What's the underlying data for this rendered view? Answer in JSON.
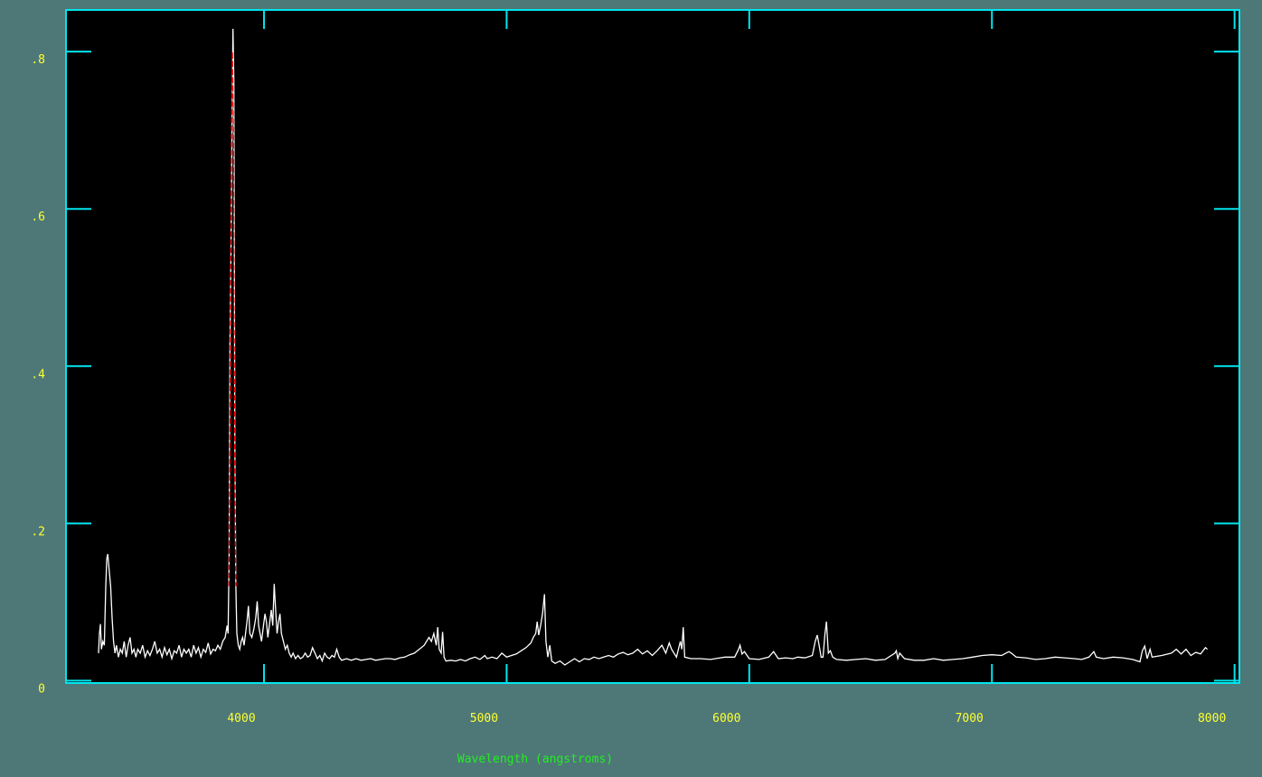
{
  "chart_data": {
    "type": "line",
    "title": "",
    "xlabel": "Wavelength (angstroms)",
    "ylabel": "",
    "xlim": [
      3184,
      8020
    ],
    "ylim": [
      -0.003,
      0.853
    ],
    "grid": false,
    "x_ticks": [
      4000,
      5000,
      6000,
      7000,
      8000
    ],
    "x_tick_labels": [
      "4000",
      "5000",
      "6000",
      "7000",
      "8000"
    ],
    "y_ticks": [
      0,
      0.2,
      0.4,
      0.6,
      0.8
    ],
    "y_tick_labels": [
      "0",
      ".2",
      ".4",
      ".6",
      ".8"
    ],
    "colors": {
      "background": "#4e7877",
      "plot_area": "#000000",
      "frame": "#00e5ee",
      "spectrum": "#ffffff",
      "fit": "#ff0000",
      "tick_labels": "#ffff33",
      "axis_title": "#22ee22"
    },
    "series": [
      {
        "color": "#ffffff",
        "points": [
          [
            3318,
            0.035
          ],
          [
            3322,
            0.06
          ],
          [
            3326,
            0.072
          ],
          [
            3330,
            0.04
          ],
          [
            3336,
            0.05
          ],
          [
            3342,
            0.045
          ],
          [
            3348,
            0.12
          ],
          [
            3352,
            0.155
          ],
          [
            3356,
            0.161
          ],
          [
            3362,
            0.14
          ],
          [
            3368,
            0.12
          ],
          [
            3374,
            0.08
          ],
          [
            3380,
            0.05
          ],
          [
            3386,
            0.035
          ],
          [
            3392,
            0.045
          ],
          [
            3400,
            0.03
          ],
          [
            3408,
            0.04
          ],
          [
            3416,
            0.035
          ],
          [
            3424,
            0.05
          ],
          [
            3432,
            0.03
          ],
          [
            3440,
            0.045
          ],
          [
            3448,
            0.055
          ],
          [
            3456,
            0.035
          ],
          [
            3464,
            0.04
          ],
          [
            3472,
            0.03
          ],
          [
            3480,
            0.04
          ],
          [
            3490,
            0.035
          ],
          [
            3500,
            0.045
          ],
          [
            3510,
            0.03
          ],
          [
            3520,
            0.038
          ],
          [
            3530,
            0.032
          ],
          [
            3540,
            0.04
          ],
          [
            3550,
            0.05
          ],
          [
            3560,
            0.035
          ],
          [
            3570,
            0.04
          ],
          [
            3580,
            0.03
          ],
          [
            3590,
            0.042
          ],
          [
            3600,
            0.033
          ],
          [
            3610,
            0.04
          ],
          [
            3620,
            0.028
          ],
          [
            3630,
            0.038
          ],
          [
            3640,
            0.035
          ],
          [
            3650,
            0.045
          ],
          [
            3660,
            0.03
          ],
          [
            3670,
            0.04
          ],
          [
            3680,
            0.035
          ],
          [
            3690,
            0.04
          ],
          [
            3700,
            0.03
          ],
          [
            3710,
            0.045
          ],
          [
            3720,
            0.035
          ],
          [
            3730,
            0.042
          ],
          [
            3740,
            0.03
          ],
          [
            3750,
            0.04
          ],
          [
            3760,
            0.036
          ],
          [
            3770,
            0.048
          ],
          [
            3780,
            0.034
          ],
          [
            3790,
            0.04
          ],
          [
            3800,
            0.038
          ],
          [
            3810,
            0.045
          ],
          [
            3820,
            0.04
          ],
          [
            3830,
            0.05
          ],
          [
            3840,
            0.055
          ],
          [
            3848,
            0.07
          ],
          [
            3852,
            0.06
          ],
          [
            3856,
            0.15
          ],
          [
            3860,
            0.43
          ],
          [
            3864,
            0.55
          ],
          [
            3868,
            0.7
          ],
          [
            3872,
            0.829
          ],
          [
            3876,
            0.76
          ],
          [
            3880,
            0.3
          ],
          [
            3884,
            0.12
          ],
          [
            3888,
            0.06
          ],
          [
            3894,
            0.045
          ],
          [
            3900,
            0.04
          ],
          [
            3906,
            0.05
          ],
          [
            3912,
            0.055
          ],
          [
            3918,
            0.045
          ],
          [
            3924,
            0.06
          ],
          [
            3930,
            0.075
          ],
          [
            3936,
            0.095
          ],
          [
            3942,
            0.06
          ],
          [
            3950,
            0.055
          ],
          [
            3958,
            0.065
          ],
          [
            3966,
            0.08
          ],
          [
            3972,
            0.101
          ],
          [
            3978,
            0.07
          ],
          [
            3984,
            0.06
          ],
          [
            3990,
            0.05
          ],
          [
            3996,
            0.065
          ],
          [
            4004,
            0.085
          ],
          [
            4010,
            0.075
          ],
          [
            4016,
            0.055
          ],
          [
            4022,
            0.07
          ],
          [
            4030,
            0.09
          ],
          [
            4036,
            0.07
          ],
          [
            4042,
            0.123
          ],
          [
            4048,
            0.09
          ],
          [
            4054,
            0.06
          ],
          [
            4060,
            0.075
          ],
          [
            4066,
            0.085
          ],
          [
            4072,
            0.06
          ],
          [
            4080,
            0.05
          ],
          [
            4088,
            0.04
          ],
          [
            4096,
            0.045
          ],
          [
            4104,
            0.035
          ],
          [
            4112,
            0.03
          ],
          [
            4120,
            0.035
          ],
          [
            4130,
            0.028
          ],
          [
            4140,
            0.032
          ],
          [
            4150,
            0.028
          ],
          [
            4160,
            0.03
          ],
          [
            4170,
            0.035
          ],
          [
            4180,
            0.03
          ],
          [
            4190,
            0.032
          ],
          [
            4200,
            0.042
          ],
          [
            4210,
            0.035
          ],
          [
            4220,
            0.028
          ],
          [
            4230,
            0.032
          ],
          [
            4240,
            0.025
          ],
          [
            4250,
            0.035
          ],
          [
            4260,
            0.03
          ],
          [
            4270,
            0.028
          ],
          [
            4280,
            0.032
          ],
          [
            4290,
            0.03
          ],
          [
            4300,
            0.04
          ],
          [
            4310,
            0.03
          ],
          [
            4320,
            0.026
          ],
          [
            4340,
            0.028
          ],
          [
            4360,
            0.026
          ],
          [
            4380,
            0.028
          ],
          [
            4400,
            0.026
          ],
          [
            4420,
            0.027
          ],
          [
            4440,
            0.028
          ],
          [
            4460,
            0.026
          ],
          [
            4480,
            0.027
          ],
          [
            4500,
            0.028
          ],
          [
            4520,
            0.028
          ],
          [
            4540,
            0.027
          ],
          [
            4560,
            0.029
          ],
          [
            4580,
            0.03
          ],
          [
            4600,
            0.033
          ],
          [
            4620,
            0.035
          ],
          [
            4640,
            0.04
          ],
          [
            4660,
            0.045
          ],
          [
            4680,
            0.055
          ],
          [
            4690,
            0.05
          ],
          [
            4700,
            0.06
          ],
          [
            4710,
            0.045
          ],
          [
            4716,
            0.068
          ],
          [
            4722,
            0.04
          ],
          [
            4730,
            0.035
          ],
          [
            4736,
            0.062
          ],
          [
            4742,
            0.03
          ],
          [
            4750,
            0.025
          ],
          [
            4770,
            0.026
          ],
          [
            4790,
            0.025
          ],
          [
            4810,
            0.027
          ],
          [
            4830,
            0.025
          ],
          [
            4850,
            0.028
          ],
          [
            4870,
            0.03
          ],
          [
            4890,
            0.027
          ],
          [
            4910,
            0.032
          ],
          [
            4920,
            0.028
          ],
          [
            4940,
            0.03
          ],
          [
            4960,
            0.028
          ],
          [
            4980,
            0.035
          ],
          [
            5000,
            0.03
          ],
          [
            5020,
            0.032
          ],
          [
            5040,
            0.034
          ],
          [
            5060,
            0.038
          ],
          [
            5080,
            0.042
          ],
          [
            5100,
            0.048
          ],
          [
            5110,
            0.055
          ],
          [
            5120,
            0.06
          ],
          [
            5126,
            0.075
          ],
          [
            5132,
            0.058
          ],
          [
            5140,
            0.07
          ],
          [
            5148,
            0.085
          ],
          [
            5156,
            0.11
          ],
          [
            5162,
            0.05
          ],
          [
            5170,
            0.03
          ],
          [
            5178,
            0.045
          ],
          [
            5186,
            0.025
          ],
          [
            5200,
            0.022
          ],
          [
            5220,
            0.025
          ],
          [
            5240,
            0.02
          ],
          [
            5260,
            0.024
          ],
          [
            5280,
            0.028
          ],
          [
            5300,
            0.024
          ],
          [
            5320,
            0.028
          ],
          [
            5340,
            0.027
          ],
          [
            5360,
            0.03
          ],
          [
            5380,
            0.028
          ],
          [
            5400,
            0.03
          ],
          [
            5420,
            0.032
          ],
          [
            5440,
            0.03
          ],
          [
            5460,
            0.034
          ],
          [
            5480,
            0.036
          ],
          [
            5500,
            0.033
          ],
          [
            5520,
            0.035
          ],
          [
            5540,
            0.04
          ],
          [
            5560,
            0.034
          ],
          [
            5580,
            0.038
          ],
          [
            5600,
            0.032
          ],
          [
            5620,
            0.038
          ],
          [
            5640,
            0.045
          ],
          [
            5656,
            0.035
          ],
          [
            5670,
            0.048
          ],
          [
            5680,
            0.04
          ],
          [
            5700,
            0.03
          ],
          [
            5716,
            0.05
          ],
          [
            5722,
            0.04
          ],
          [
            5728,
            0.068
          ],
          [
            5734,
            0.03
          ],
          [
            5760,
            0.028
          ],
          [
            5800,
            0.028
          ],
          [
            5840,
            0.027
          ],
          [
            5880,
            0.029
          ],
          [
            5900,
            0.03
          ],
          [
            5940,
            0.03
          ],
          [
            5956,
            0.04
          ],
          [
            5962,
            0.045
          ],
          [
            5970,
            0.034
          ],
          [
            5980,
            0.037
          ],
          [
            6000,
            0.028
          ],
          [
            6040,
            0.027
          ],
          [
            6080,
            0.03
          ],
          [
            6100,
            0.037
          ],
          [
            6120,
            0.028
          ],
          [
            6150,
            0.029
          ],
          [
            6180,
            0.028
          ],
          [
            6200,
            0.03
          ],
          [
            6230,
            0.029
          ],
          [
            6260,
            0.032
          ],
          [
            6272,
            0.05
          ],
          [
            6280,
            0.058
          ],
          [
            6288,
            0.045
          ],
          [
            6296,
            0.03
          ],
          [
            6304,
            0.03
          ],
          [
            6312,
            0.06
          ],
          [
            6318,
            0.075
          ],
          [
            6326,
            0.035
          ],
          [
            6334,
            0.038
          ],
          [
            6344,
            0.03
          ],
          [
            6360,
            0.027
          ],
          [
            6400,
            0.026
          ],
          [
            6440,
            0.027
          ],
          [
            6480,
            0.028
          ],
          [
            6520,
            0.026
          ],
          [
            6560,
            0.027
          ],
          [
            6600,
            0.035
          ],
          [
            6606,
            0.038
          ],
          [
            6612,
            0.028
          ],
          [
            6620,
            0.035
          ],
          [
            6640,
            0.028
          ],
          [
            6680,
            0.026
          ],
          [
            6720,
            0.026
          ],
          [
            6760,
            0.028
          ],
          [
            6800,
            0.026
          ],
          [
            6840,
            0.027
          ],
          [
            6880,
            0.028
          ],
          [
            6920,
            0.03
          ],
          [
            6960,
            0.032
          ],
          [
            7000,
            0.033
          ],
          [
            7040,
            0.032
          ],
          [
            7070,
            0.037
          ],
          [
            7080,
            0.035
          ],
          [
            7100,
            0.03
          ],
          [
            7140,
            0.029
          ],
          [
            7180,
            0.027
          ],
          [
            7220,
            0.028
          ],
          [
            7260,
            0.03
          ],
          [
            7300,
            0.029
          ],
          [
            7340,
            0.028
          ],
          [
            7370,
            0.027
          ],
          [
            7400,
            0.03
          ],
          [
            7420,
            0.037
          ],
          [
            7430,
            0.03
          ],
          [
            7460,
            0.028
          ],
          [
            7500,
            0.03
          ],
          [
            7540,
            0.029
          ],
          [
            7580,
            0.027
          ],
          [
            7610,
            0.024
          ],
          [
            7620,
            0.038
          ],
          [
            7630,
            0.044
          ],
          [
            7640,
            0.028
          ],
          [
            7652,
            0.04
          ],
          [
            7660,
            0.03
          ],
          [
            7700,
            0.032
          ],
          [
            7740,
            0.035
          ],
          [
            7760,
            0.04
          ],
          [
            7780,
            0.034
          ],
          [
            7800,
            0.04
          ],
          [
            7820,
            0.032
          ],
          [
            7840,
            0.036
          ],
          [
            7860,
            0.034
          ],
          [
            7880,
            0.042
          ],
          [
            7888,
            0.04
          ]
        ]
      },
      {
        "color": "#ff0000",
        "style": "dashed",
        "points": [
          [
            3856,
            0.12
          ],
          [
            3860,
            0.3
          ],
          [
            3863,
            0.5
          ],
          [
            3866,
            0.7
          ],
          [
            3870,
            0.8
          ],
          [
            3874,
            0.7
          ],
          [
            3877,
            0.45
          ],
          [
            3880,
            0.27
          ],
          [
            3883,
            0.14
          ],
          [
            3885,
            0.12
          ]
        ]
      }
    ]
  }
}
